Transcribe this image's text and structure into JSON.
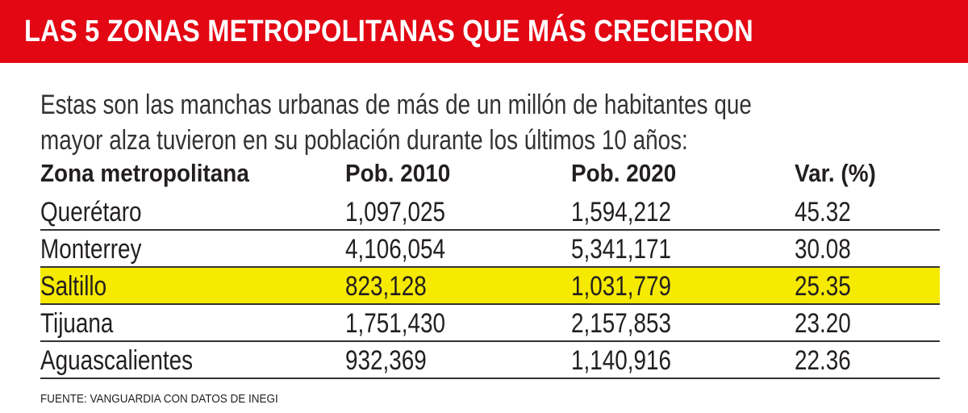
{
  "title": "LAS 5 ZONAS METROPOLITANAS QUE MÁS CRECIERON",
  "intro": [
    "Estas son las manchas urbanas de más de un millón de habitantes que",
    "mayor alza tuvieron en su población durante los últimos 10 años:"
  ],
  "colors": {
    "banner": "#e30613",
    "highlight": "#f5ea00"
  },
  "table": {
    "headers": [
      "Zona metropolitana",
      "Pob. 2010",
      "Pob. 2020",
      "Var. (%)"
    ],
    "rows": [
      [
        "Querétaro",
        "1,097,025",
        "1,594,212",
        "45.32"
      ],
      [
        "Monterrey",
        "4,106,054",
        "5,341,171",
        "30.08"
      ],
      [
        "Saltillo",
        "823,128",
        "1,031,779",
        "25.35"
      ],
      [
        "Tijuana",
        "1,751,430",
        "2,157,853",
        "23.20"
      ],
      [
        "Aguascalientes",
        "932,369",
        "1,140,916",
        "22.36"
      ]
    ],
    "highlighted_row": "Saltillo"
  },
  "source": "FUENTE: VANGUARDIA CON DATOS DE INEGI"
}
